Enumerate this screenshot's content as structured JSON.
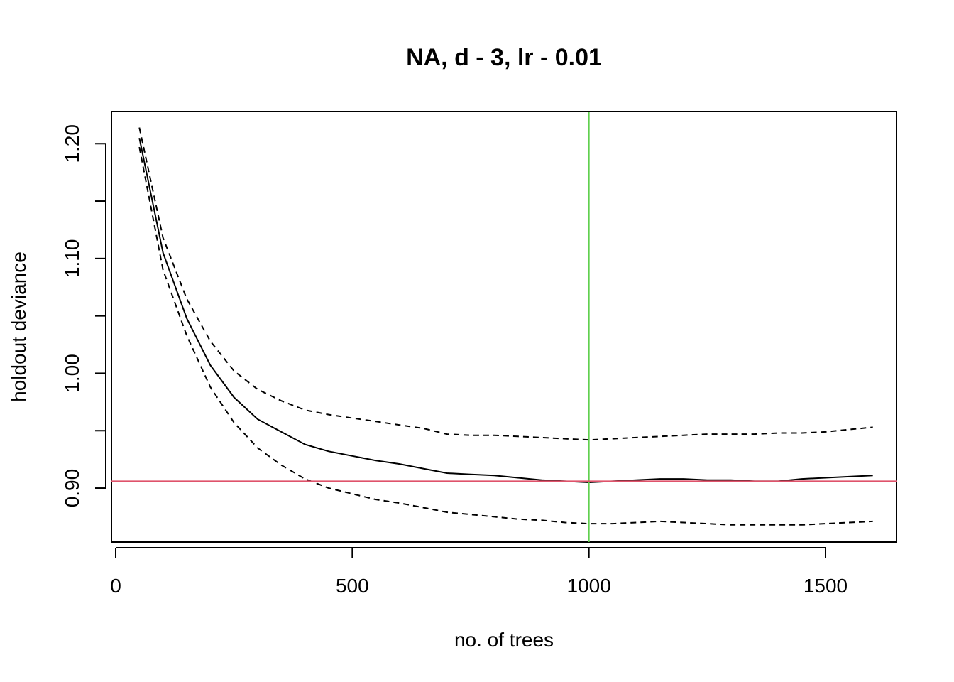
{
  "chart_data": {
    "type": "line",
    "title": "NA, d - 3, lr - 0.01",
    "xlabel": "no. of trees",
    "ylabel": "holdout deviance",
    "xlim": [
      0,
      1650
    ],
    "ylim": [
      0.853,
      1.228
    ],
    "x_ticks": [
      0,
      500,
      1000,
      1500
    ],
    "x_tick_labels": [
      "0",
      "500",
      "1000",
      "1500"
    ],
    "y_ticks": [
      0.9,
      0.95,
      1.0,
      1.05,
      1.1,
      1.15,
      1.2
    ],
    "y_tick_labels": [
      "0.90",
      "",
      "1.00",
      "",
      "1.10",
      "",
      "1.20"
    ],
    "grid": false,
    "legend": "none",
    "reference_lines": {
      "vertical": {
        "x": 1000,
        "color": "#61D04F"
      },
      "horizontal": {
        "y": 0.906,
        "color": "#DF536B"
      }
    },
    "series": [
      {
        "style": "solid",
        "color": "#000000",
        "x": [
          50,
          100,
          150,
          200,
          250,
          300,
          350,
          400,
          450,
          500,
          550,
          600,
          650,
          700,
          750,
          800,
          850,
          900,
          950,
          1000,
          1050,
          1100,
          1150,
          1200,
          1250,
          1300,
          1350,
          1400,
          1450,
          1500,
          1550,
          1600
        ],
        "values": [
          1.205,
          1.105,
          1.048,
          1.007,
          0.979,
          0.96,
          0.949,
          0.938,
          0.932,
          0.928,
          0.924,
          0.921,
          0.917,
          0.913,
          0.912,
          0.911,
          0.909,
          0.907,
          0.906,
          0.905,
          0.906,
          0.907,
          0.908,
          0.908,
          0.907,
          0.907,
          0.906,
          0.906,
          0.908,
          0.909,
          0.91,
          0.911
        ]
      },
      {
        "style": "dashed",
        "color": "#000000",
        "x": [
          50,
          100,
          150,
          200,
          250,
          300,
          350,
          400,
          450,
          500,
          550,
          600,
          650,
          700,
          750,
          800,
          850,
          900,
          950,
          1000,
          1050,
          1100,
          1150,
          1200,
          1250,
          1300,
          1350,
          1400,
          1450,
          1500,
          1550,
          1600
        ],
        "values": [
          1.214,
          1.118,
          1.065,
          1.028,
          1.002,
          0.986,
          0.976,
          0.968,
          0.964,
          0.961,
          0.958,
          0.955,
          0.952,
          0.947,
          0.946,
          0.946,
          0.945,
          0.944,
          0.943,
          0.942,
          0.943,
          0.944,
          0.945,
          0.946,
          0.947,
          0.947,
          0.947,
          0.948,
          0.948,
          0.949,
          0.951,
          0.953
        ]
      },
      {
        "style": "dashed",
        "color": "#000000",
        "x": [
          50,
          100,
          150,
          200,
          250,
          300,
          350,
          400,
          450,
          500,
          550,
          600,
          650,
          700,
          750,
          800,
          850,
          900,
          950,
          1000,
          1050,
          1100,
          1150,
          1200,
          1250,
          1300,
          1350,
          1400,
          1450,
          1500,
          1550,
          1600
        ],
        "values": [
          1.197,
          1.09,
          1.033,
          0.988,
          0.957,
          0.935,
          0.92,
          0.908,
          0.9,
          0.895,
          0.89,
          0.887,
          0.883,
          0.879,
          0.877,
          0.875,
          0.873,
          0.872,
          0.87,
          0.869,
          0.869,
          0.87,
          0.871,
          0.87,
          0.869,
          0.868,
          0.868,
          0.868,
          0.868,
          0.869,
          0.87,
          0.871
        ]
      }
    ]
  }
}
